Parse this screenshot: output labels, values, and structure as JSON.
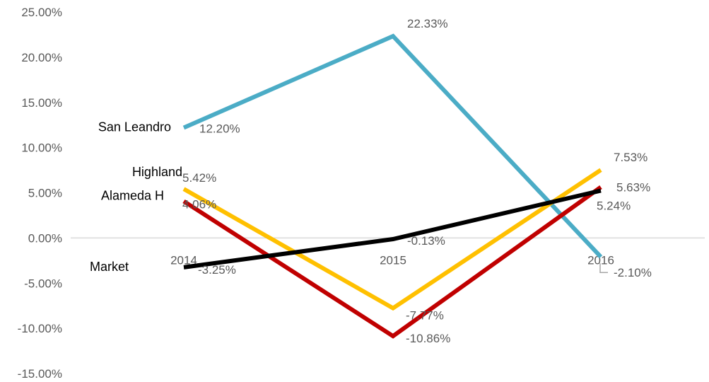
{
  "chart_data": {
    "type": "line",
    "categories": [
      "2014",
      "2015",
      "2016"
    ],
    "ylim": [
      -15,
      25
    ],
    "yticks": [
      "25.00%",
      "20.00%",
      "15.00%",
      "10.00%",
      "5.00%",
      "0.00%",
      "-5.00%",
      "-10.00%",
      "-15.00%"
    ],
    "grid": false,
    "legend": "none",
    "series": [
      {
        "name": "San Leandro",
        "color": "#4bacc6",
        "values": [
          12.2,
          22.33,
          -2.1
        ],
        "labels": [
          "12.20%",
          "22.33%",
          "-2.10%"
        ]
      },
      {
        "name": "Highland",
        "color": "#ffc000",
        "values": [
          5.42,
          -7.77,
          7.53
        ],
        "labels": [
          "5.42%",
          "-7.77%",
          "7.53%"
        ]
      },
      {
        "name": "Alameda H",
        "color": "#c00000",
        "values": [
          4.06,
          -10.86,
          5.63
        ],
        "labels": [
          "4.06%",
          "-10.86%",
          "5.63%"
        ]
      },
      {
        "name": "Market",
        "color": "#000000",
        "values": [
          -3.25,
          -0.13,
          5.24
        ],
        "labels": [
          "-3.25%",
          "-0.13%",
          "5.24%"
        ]
      }
    ]
  }
}
